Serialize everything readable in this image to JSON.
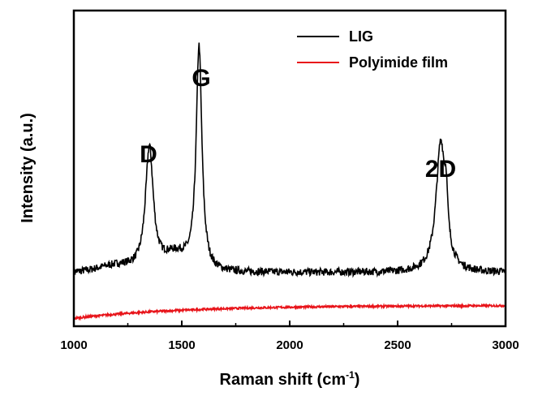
{
  "chart_data": {
    "type": "line",
    "xlabel_main": "Raman shift (cm",
    "xlabel_sup": "-1",
    "xlabel_tail": ")",
    "ylabel": "Intensity (a.u.)",
    "xlim": [
      1000,
      3000
    ],
    "ylim": [
      0,
      100
    ],
    "x_ticks": [
      1000,
      1500,
      2000,
      2500,
      3000
    ],
    "y_ticks_labeled": false,
    "grid": false,
    "legend_position": "top-right",
    "annotations": [
      {
        "text": "D",
        "x": 1350,
        "y": 72
      },
      {
        "text": "G",
        "x": 1580,
        "y": 101
      },
      {
        "text": "2D",
        "x": 2700,
        "y": 65
      }
    ],
    "series": [
      {
        "name": "LIG",
        "color": "#000000",
        "baseline": 17,
        "noise": 1.2,
        "peaks": [
          {
            "center": 1350,
            "width": 22,
            "height": 39
          },
          {
            "center": 1580,
            "width": 16,
            "height": 71
          },
          {
            "center": 2700,
            "width": 26,
            "height": 41
          },
          {
            "center": 2725,
            "width": 8,
            "height": 12
          }
        ],
        "shoulders": [
          {
            "center": 1470,
            "width": 80,
            "height": 5
          },
          {
            "center": 1200,
            "width": 120,
            "height": 2
          }
        ]
      },
      {
        "name": "Polyimide film",
        "color": "#e8141a",
        "start": 2.5,
        "end": 6.5,
        "noise": 0.3
      }
    ]
  }
}
